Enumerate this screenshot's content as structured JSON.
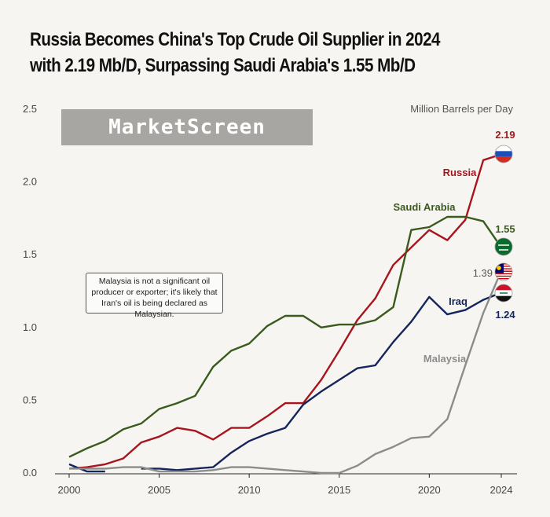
{
  "title": {
    "line1": "Russia Becomes China's Top Crude Oil Supplier in 2024",
    "line2": "with 2.19 Mb/D, Surpassing Saudi Arabia's 1.55 Mb/D"
  },
  "watermark": "MarketScreen",
  "note": "Malaysia is not a significant oil producer or exporter; it's likely that Iran's oil is being declared as Malaysian.",
  "colors": {
    "background": "#f6f5f1",
    "russia": "#a8141c",
    "saudi": "#3a5a1e",
    "iraq": "#14255c",
    "malaysia": "#8c8c8c"
  },
  "chart_data": {
    "type": "line",
    "title": "Russia Becomes China's Top Crude Oil Supplier in 2024 with 2.19 Mb/D, Surpassing Saudi Arabia's 1.55 Mb/D",
    "ylabel": "Million Barrels per Day",
    "xlabel": "",
    "xlim": [
      2000,
      2024
    ],
    "ylim": [
      0,
      2.5
    ],
    "x_ticks": [
      "2000",
      "2005",
      "2010",
      "2015",
      "2020",
      "2024"
    ],
    "y_ticks": [
      "0.0",
      "0.5",
      "1.0",
      "1.5",
      "2.0",
      "2.5"
    ],
    "grid": false,
    "series": [
      {
        "name": "Russia",
        "color": "#a8141c",
        "end_label": "2.19",
        "x": [
          2000,
          2001,
          2002,
          2003,
          2004,
          2005,
          2006,
          2007,
          2008,
          2009,
          2010,
          2011,
          2012,
          2013,
          2014,
          2015,
          2016,
          2017,
          2018,
          2019,
          2020,
          2021,
          2022,
          2023,
          2024
        ],
        "y": [
          0.03,
          0.04,
          0.06,
          0.1,
          0.21,
          0.25,
          0.31,
          0.29,
          0.23,
          0.31,
          0.31,
          0.39,
          0.48,
          0.48,
          0.64,
          0.84,
          1.05,
          1.2,
          1.43,
          1.55,
          1.67,
          1.6,
          1.74,
          2.15,
          2.19
        ]
      },
      {
        "name": "Saudi Arabia",
        "color": "#3a5a1e",
        "end_label": "1.55",
        "x": [
          2000,
          2001,
          2002,
          2003,
          2004,
          2005,
          2006,
          2007,
          2008,
          2009,
          2010,
          2011,
          2012,
          2013,
          2014,
          2015,
          2016,
          2017,
          2018,
          2019,
          2020,
          2021,
          2022,
          2023,
          2024
        ],
        "y": [
          0.11,
          0.17,
          0.22,
          0.3,
          0.34,
          0.44,
          0.48,
          0.53,
          0.73,
          0.84,
          0.89,
          1.01,
          1.08,
          1.08,
          1.0,
          1.02,
          1.02,
          1.05,
          1.14,
          1.67,
          1.69,
          1.76,
          1.76,
          1.73,
          1.55
        ]
      },
      {
        "name": "Iraq",
        "color": "#14255c",
        "end_label": "1.24",
        "x": [
          2000,
          2001,
          2002,
          2003,
          2004,
          2005,
          2006,
          2007,
          2008,
          2009,
          2010,
          2011,
          2012,
          2013,
          2014,
          2015,
          2016,
          2017,
          2018,
          2019,
          2020,
          2021,
          2022,
          2023,
          2024
        ],
        "y": [
          0.06,
          0.01,
          0.01,
          null,
          0.03,
          0.03,
          0.02,
          0.03,
          0.04,
          0.14,
          0.22,
          0.27,
          0.31,
          0.47,
          0.56,
          0.64,
          0.72,
          0.74,
          0.9,
          1.04,
          1.21,
          1.09,
          1.12,
          1.19,
          1.24
        ]
      },
      {
        "name": "Malaysia",
        "color": "#8c8c8c",
        "end_label": "1.39",
        "x": [
          2000,
          2001,
          2002,
          2003,
          2004,
          2005,
          2006,
          2007,
          2008,
          2009,
          2010,
          2011,
          2012,
          2013,
          2014,
          2015,
          2016,
          2017,
          2018,
          2019,
          2020,
          2021,
          2022,
          2023,
          2024
        ],
        "y": [
          0.03,
          0.03,
          0.03,
          0.04,
          0.04,
          0.01,
          0.01,
          0.01,
          0.02,
          0.04,
          0.04,
          0.03,
          0.02,
          0.01,
          0.0,
          0.0,
          0.05,
          0.13,
          0.18,
          0.24,
          0.25,
          0.37,
          0.74,
          1.1,
          1.39
        ]
      }
    ]
  }
}
